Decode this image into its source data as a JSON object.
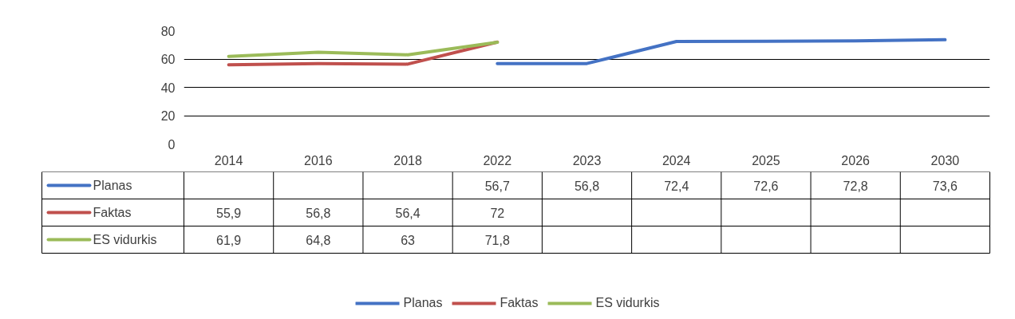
{
  "chart_data": {
    "type": "line",
    "categories": [
      "2014",
      "2016",
      "2018",
      "2022",
      "2023",
      "2024",
      "2025",
      "2026",
      "2030"
    ],
    "series": [
      {
        "name": "Planas",
        "color": "#4472c4",
        "values": [
          null,
          null,
          null,
          56.7,
          56.8,
          72.4,
          72.6,
          72.8,
          73.6
        ],
        "value_labels": [
          null,
          null,
          null,
          "56,7",
          "56,8",
          "72,4",
          "72,6",
          "72,8",
          "73,6"
        ]
      },
      {
        "name": "Faktas",
        "color": "#c0504d",
        "values": [
          55.9,
          56.8,
          56.4,
          72,
          null,
          null,
          null,
          null,
          null
        ],
        "value_labels": [
          "55,9",
          "56,8",
          "56,4",
          "72",
          null,
          null,
          null,
          null,
          null
        ]
      },
      {
        "name": "ES vidurkis",
        "color": "#9bbb59",
        "values": [
          61.9,
          64.8,
          63,
          71.8,
          null,
          null,
          null,
          null,
          null
        ],
        "value_labels": [
          "61,9",
          "64,8",
          "63",
          "71,8",
          null,
          null,
          null,
          null,
          null
        ]
      }
    ],
    "ylim": [
      0,
      80
    ],
    "yticks": [
      0,
      20,
      40,
      60,
      80
    ],
    "grid": "y",
    "legend": "bottom",
    "line_style": "solid",
    "marker": "none"
  }
}
